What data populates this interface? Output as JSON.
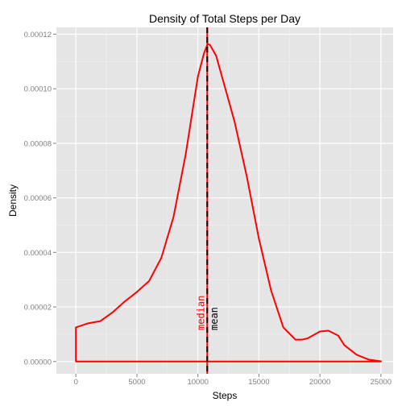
{
  "chart_data": {
    "type": "area",
    "title": "Density of Total Steps per Day",
    "xlabel": "Steps",
    "ylabel": "Density",
    "xlim": [
      -1600,
      26000
    ],
    "ylim": [
      -4.5e-06,
      0.0001225
    ],
    "x_ticks": [
      0,
      5000,
      10000,
      15000,
      20000,
      25000
    ],
    "x_tick_labels": [
      "0",
      "5000",
      "10000",
      "15000",
      "20000",
      "25000"
    ],
    "y_ticks": [
      0,
      2e-05,
      4e-05,
      6e-05,
      8e-05,
      0.0001,
      0.00012
    ],
    "y_tick_labels": [
      "0.00000",
      "0.00002",
      "0.00004",
      "0.00006",
      "0.00008",
      "0.00010",
      "0.00012"
    ],
    "grid": true,
    "series": [
      {
        "color": "#ff0000",
        "x": [
          0,
          1000,
          2000,
          3000,
          4000,
          5000,
          6000,
          7000,
          8000,
          9000,
          10000,
          10500,
          10800,
          11000,
          11500,
          12000,
          13000,
          14000,
          15000,
          16000,
          17000,
          18000,
          18500,
          19000,
          20000,
          20700,
          21500,
          22000,
          23000,
          24000,
          25000
        ],
        "y": [
          1.25e-05,
          1.4e-05,
          1.48e-05,
          1.8e-05,
          2.2e-05,
          2.55e-05,
          2.95e-05,
          3.8e-05,
          5.3e-05,
          7.6e-05,
          0.0001045,
          0.000113,
          0.0001165,
          0.000116,
          0.000112,
          0.000104,
          8.8e-05,
          6.8e-05,
          4.5e-05,
          2.6e-05,
          1.25e-05,
          8e-06,
          8e-06,
          8.5e-06,
          1.1e-05,
          1.13e-05,
          9.5e-06,
          6e-06,
          2.5e-06,
          7e-07,
          1e-07
        ]
      }
    ],
    "vlines": [
      {
        "label": "median",
        "value": 10765,
        "color": "#ff0000",
        "style": "solid"
      },
      {
        "label": "mean",
        "value": 10766,
        "color": "#000000",
        "style": "dashed"
      }
    ],
    "colors": {
      "panel": "#e5e5e5",
      "grid_major": "#ffffff",
      "grid_minor": "#f2f2f2",
      "density": "#ff0000"
    }
  }
}
